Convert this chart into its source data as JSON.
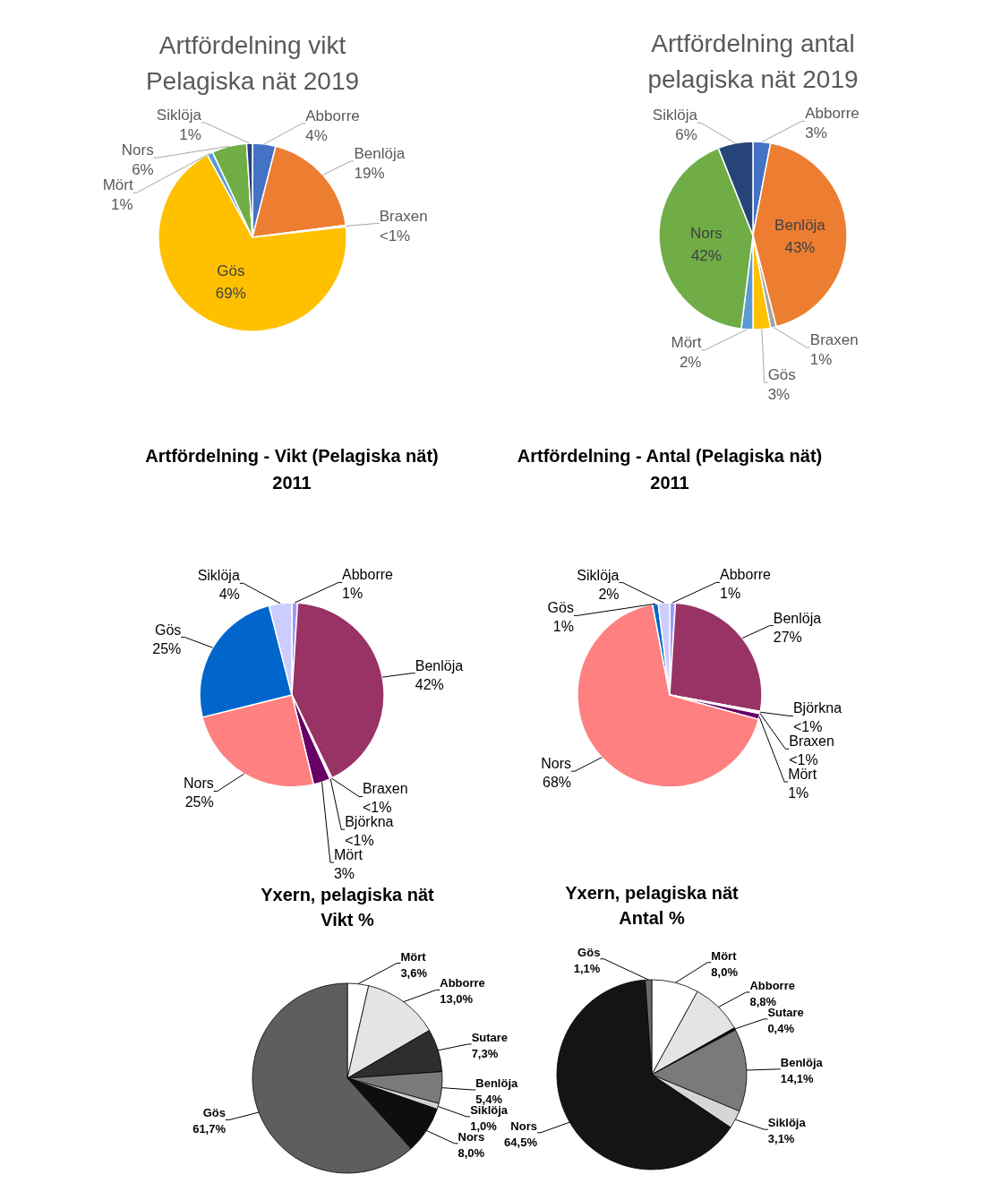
{
  "chart_data": [
    {
      "type": "pie",
      "title": "Artfördelning vikt\nPelagiska nät 2019",
      "categories": [
        "Abborre",
        "Benlöja",
        "Braxen",
        "Gös",
        "Mört",
        "Nors",
        "Siklöja"
      ],
      "values": [
        4,
        19,
        0.3,
        69,
        1,
        6,
        1
      ],
      "value_labels": [
        "4%",
        "19%",
        "<1%",
        "69%",
        "1%",
        "6%",
        "1%"
      ],
      "colors": [
        "#4472c4",
        "#ed7d31",
        "#a5a5a5",
        "#ffc000",
        "#5b9bd5",
        "#70ad47",
        "#264478"
      ]
    },
    {
      "type": "pie",
      "title": "Artfördelning antal\npelagiska nät 2019",
      "categories": [
        "Abborre",
        "Benlöja",
        "Braxen",
        "Gös",
        "Mört",
        "Nors",
        "Siklöja"
      ],
      "values": [
        3,
        43,
        1,
        3,
        2,
        42,
        6
      ],
      "value_labels": [
        "3%",
        "43%",
        "1%",
        "3%",
        "2%",
        "42%",
        "6%"
      ],
      "colors": [
        "#4472c4",
        "#ed7d31",
        "#a5a5a5",
        "#ffc000",
        "#5b9bd5",
        "#70ad47",
        "#264478"
      ]
    },
    {
      "type": "pie",
      "title": "Artfördelning - Vikt (Pelagiska nät)\n2011",
      "categories": [
        "Abborre",
        "Benlöja",
        "Braxen",
        "Björkna",
        "Mört",
        "Nors",
        "Gös",
        "Siklöja"
      ],
      "values": [
        1,
        42,
        0.2,
        0.2,
        3,
        25,
        25,
        4
      ],
      "value_labels": [
        "1%",
        "42%",
        "<1%",
        "<1%",
        "3%",
        "25%",
        "25%",
        "4%"
      ],
      "colors": [
        "#9999ff",
        "#993366",
        "#33cccc",
        "#ffcc99",
        "#660066",
        "#ff8080",
        "#0066cc",
        "#ccccff"
      ]
    },
    {
      "type": "pie",
      "title": "Artfördelning - Antal (Pelagiska nät)\n2011",
      "categories": [
        "Abborre",
        "Benlöja",
        "Björkna",
        "Braxen",
        "Mört",
        "Nors",
        "Gös",
        "Siklöja"
      ],
      "values": [
        1,
        27,
        0.2,
        0.2,
        1,
        68,
        1,
        2
      ],
      "value_labels": [
        "1%",
        "27%",
        "<1%",
        "<1%",
        "1%",
        "68%",
        "1%",
        "2%"
      ],
      "colors": [
        "#9999ff",
        "#993366",
        "#ffcc99",
        "#33cccc",
        "#660066",
        "#ff8080",
        "#0066cc",
        "#ccccff"
      ]
    },
    {
      "type": "pie",
      "title": "Yxern, pelagiska nät\nVikt %",
      "categories": [
        "Mört",
        "Abborre",
        "Sutare",
        "Benlöja",
        "Siklöja",
        "Nors",
        "Gös"
      ],
      "values": [
        3.6,
        13.0,
        7.3,
        5.4,
        1.0,
        8.0,
        61.7
      ],
      "value_labels": [
        "3,6%",
        "13,0%",
        "7,3%",
        "5,4%",
        "1,0%",
        "8,0%",
        "61,7%"
      ],
      "colors": [
        "#ffffff",
        "#e4e4e4",
        "#2e2e2e",
        "#7a7a7a",
        "#d2d2d2",
        "#0e0e0e",
        "#5e5e5e"
      ]
    },
    {
      "type": "pie",
      "title": "Yxern, pelagiska nät\nAntal %",
      "categories": [
        "Mört",
        "Abborre",
        "Sutare",
        "Benlöja",
        "Siklöja",
        "Nors",
        "Gös"
      ],
      "values": [
        8.0,
        8.8,
        0.4,
        14.1,
        3.1,
        64.5,
        1.1
      ],
      "value_labels": [
        "8,0%",
        "8,8%",
        "0,4%",
        "14,1%",
        "3,1%",
        "64,5%",
        "1,1%"
      ],
      "colors": [
        "#ffffff",
        "#e4e4e4",
        "#0a0a0a",
        "#7a7a7a",
        "#d6d6d6",
        "#141414",
        "#6a6a6a"
      ]
    }
  ]
}
